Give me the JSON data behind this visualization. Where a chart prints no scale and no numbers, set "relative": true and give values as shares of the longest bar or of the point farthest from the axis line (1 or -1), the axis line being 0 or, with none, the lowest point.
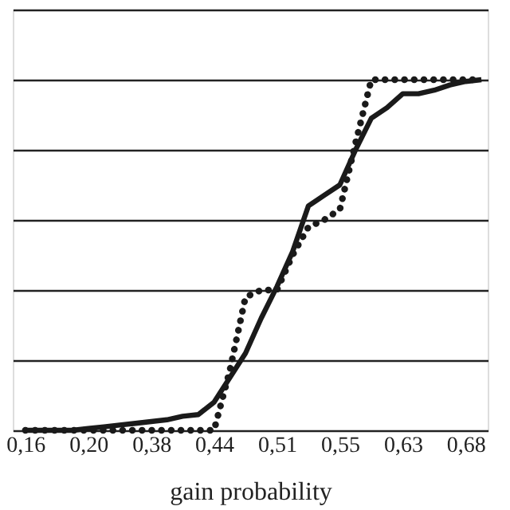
{
  "chart_data": {
    "type": "line",
    "xlabel": "gain probability",
    "relative": true,
    "grid": "y",
    "marker": "none",
    "categories": [
      "0,16",
      null,
      null,
      null,
      "0,20",
      null,
      null,
      null,
      "0,38",
      null,
      null,
      null,
      "0,44",
      null,
      null,
      null,
      "0,51",
      null,
      null,
      null,
      "0,55",
      null,
      null,
      null,
      "0,63",
      null,
      null,
      null,
      "0,68",
      null
    ],
    "series": [
      {
        "color": "#1a1a1a",
        "line_style": "solid",
        "values": [
          0,
          0,
          0,
          0,
          0.005,
          0.01,
          0.015,
          0.02,
          0.025,
          0.03,
          0.04,
          0.045,
          0.08,
          0.15,
          0.22,
          0.32,
          0.41,
          0.51,
          0.64,
          0.67,
          0.7,
          0.8,
          0.89,
          0.92,
          0.96,
          0.96,
          0.97,
          0.985,
          0.995,
          1
        ]
      },
      {
        "color": "#1a1a1a",
        "line_style": "dotted",
        "values": [
          0,
          0,
          0,
          0,
          0,
          0,
          0,
          0,
          0,
          0,
          0,
          0,
          0,
          0.17,
          0.38,
          0.4,
          0.4,
          0.5,
          0.58,
          0.6,
          0.63,
          0.82,
          1,
          1,
          1,
          1,
          1,
          1,
          1,
          1
        ]
      }
    ]
  }
}
